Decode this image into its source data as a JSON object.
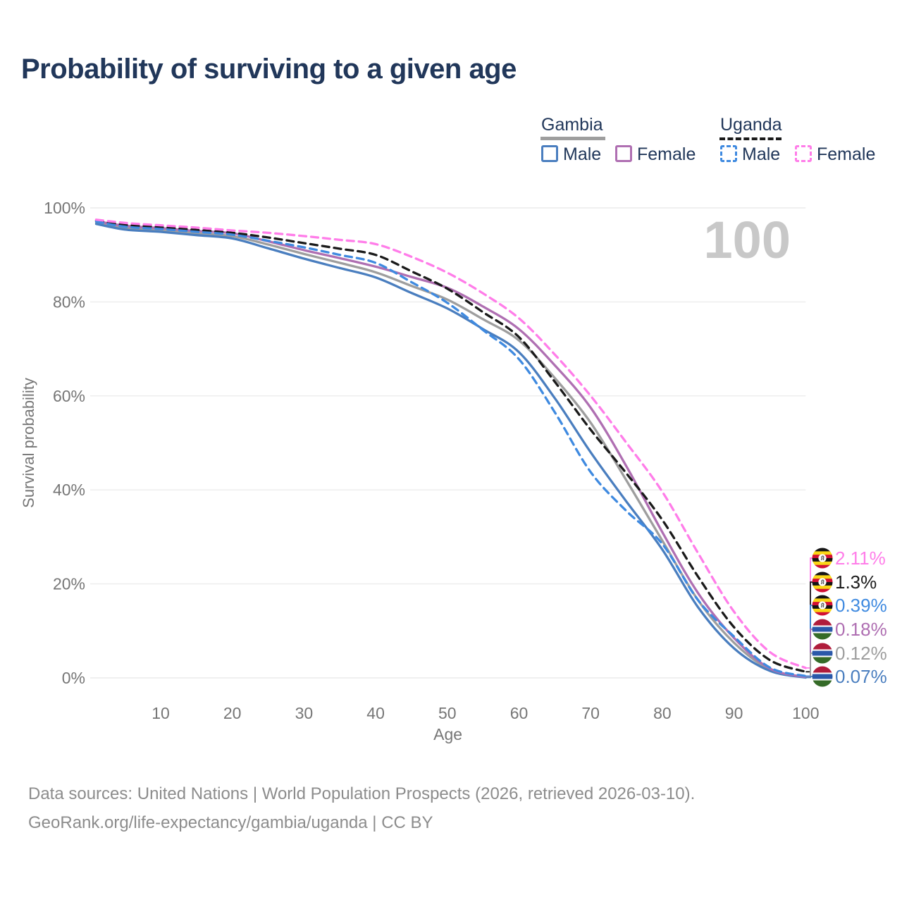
{
  "header": {
    "title": "Probability of surviving to a given age"
  },
  "legend": {
    "groups": [
      {
        "label": "Gambia",
        "line_style": "solid",
        "line_color": "#9e9e9e",
        "items": [
          {
            "label": "Male",
            "color": "#4a7ebf"
          },
          {
            "label": "Female",
            "color": "#af6fb2"
          }
        ]
      },
      {
        "label": "Uganda",
        "line_style": "dashed",
        "line_color": "#1a1a1a",
        "items": [
          {
            "label": "Male",
            "color": "#3f8ae0"
          },
          {
            "label": "Female",
            "color": "#ff7de9"
          }
        ]
      }
    ]
  },
  "chart_data": {
    "type": "line",
    "title": "Probability of surviving to a given age",
    "xlabel": "Age",
    "ylabel": "Survival probability",
    "xlim": [
      0,
      100
    ],
    "ylim": [
      0,
      100
    ],
    "grid": "horizontal-only",
    "watermark": "100",
    "x_ticks": [
      {
        "v": 10,
        "label": "10"
      },
      {
        "v": 20,
        "label": "20"
      },
      {
        "v": 30,
        "label": "30"
      },
      {
        "v": 40,
        "label": "40"
      },
      {
        "v": 50,
        "label": "50"
      },
      {
        "v": 60,
        "label": "60"
      },
      {
        "v": 70,
        "label": "70"
      },
      {
        "v": 80,
        "label": "80"
      },
      {
        "v": 90,
        "label": "90"
      },
      {
        "v": 100,
        "label": "100"
      }
    ],
    "y_ticks": [
      {
        "v": 0,
        "label": "0%"
      },
      {
        "v": 20,
        "label": "20%"
      },
      {
        "v": 40,
        "label": "40%"
      },
      {
        "v": 60,
        "label": "60%"
      },
      {
        "v": 80,
        "label": "80%"
      },
      {
        "v": 100,
        "label": "100%"
      }
    ],
    "ages": [
      1,
      5,
      10,
      15,
      20,
      25,
      30,
      35,
      40,
      45,
      50,
      55,
      60,
      65,
      70,
      75,
      80,
      85,
      90,
      95,
      100
    ],
    "series": [
      {
        "name": "Gambia Both sexes",
        "country": "Gambia",
        "sex": "Both",
        "color": "#9e9e9e",
        "dashed": false,
        "values": [
          96.9,
          95.8,
          95.3,
          94.6,
          94.0,
          92.2,
          90.2,
          88.3,
          86.3,
          83.4,
          80.5,
          76.3,
          71.8,
          63.8,
          54.3,
          42.0,
          29.2,
          16.5,
          7.5,
          1.8,
          0.12
        ]
      },
      {
        "name": "Gambia Male",
        "country": "Gambia",
        "sex": "Male",
        "color": "#4a7ebf",
        "dashed": false,
        "values": [
          96.6,
          95.4,
          94.9,
          94.2,
          93.5,
          91.4,
          89.2,
          87.2,
          85.2,
          81.9,
          78.6,
          74.2,
          69.3,
          59.5,
          48.0,
          37.5,
          27.3,
          15.0,
          6.3,
          1.5,
          0.07
        ]
      },
      {
        "name": "Gambia Female",
        "country": "Gambia",
        "sex": "Female",
        "color": "#af6fb2",
        "dashed": false,
        "values": [
          97.2,
          96.2,
          95.7,
          95.1,
          94.6,
          92.9,
          91.0,
          89.3,
          87.5,
          85.3,
          83.0,
          79.0,
          74.2,
          66.5,
          57.5,
          45.0,
          31.0,
          18.0,
          8.5,
          2.0,
          0.18
        ]
      },
      {
        "name": "Uganda Both sexes",
        "country": "Uganda",
        "sex": "Both",
        "color": "#1a1a1a",
        "dashed": true,
        "values": [
          97.3,
          96.4,
          95.9,
          95.3,
          94.7,
          93.7,
          92.5,
          91.3,
          90.0,
          86.5,
          82.8,
          77.8,
          72.5,
          63.0,
          52.8,
          43.5,
          33.6,
          21.5,
          10.8,
          3.8,
          1.3
        ]
      },
      {
        "name": "Uganda Male",
        "country": "Uganda",
        "sex": "Male",
        "color": "#3f8ae0",
        "dashed": true,
        "values": [
          97.1,
          96.0,
          95.5,
          94.9,
          94.3,
          93.0,
          91.6,
          90.0,
          88.3,
          84.2,
          79.8,
          74.0,
          67.8,
          56.5,
          43.8,
          35.5,
          28.5,
          16.5,
          8.8,
          2.2,
          0.39
        ]
      },
      {
        "name": "Uganda Female",
        "country": "Uganda",
        "sex": "Female",
        "color": "#ff7de9",
        "dashed": true,
        "values": [
          97.5,
          96.8,
          96.3,
          95.8,
          95.2,
          94.7,
          94.0,
          93.2,
          92.3,
          89.6,
          86.2,
          81.8,
          76.5,
          68.8,
          60.0,
          50.0,
          39.6,
          26.5,
          14.1,
          5.5,
          2.11
        ]
      }
    ],
    "end_labels": [
      {
        "series": "Uganda Female",
        "value_label": "2.11%",
        "color": "#ff7de9",
        "flag": "uganda"
      },
      {
        "series": "Uganda Both sexes",
        "value_label": "1.3%",
        "color": "#1a1a1a",
        "flag": "uganda"
      },
      {
        "series": "Uganda Male",
        "value_label": "0.39%",
        "color": "#3f8ae0",
        "flag": "uganda"
      },
      {
        "series": "Gambia Female",
        "value_label": "0.18%",
        "color": "#af6fb2",
        "flag": "gambia"
      },
      {
        "series": "Gambia Both sexes",
        "value_label": "0.12%",
        "color": "#9e9e9e",
        "flag": "gambia"
      },
      {
        "series": "Gambia Male",
        "value_label": "0.07%",
        "color": "#4a7ebf",
        "flag": "gambia"
      }
    ],
    "flags": {
      "uganda": {
        "stripes": [
          {
            "color": "#141414",
            "from": 0,
            "to": 16.7
          },
          {
            "color": "#f9d616",
            "from": 16.7,
            "to": 33.3
          },
          {
            "color": "#d21034",
            "from": 33.3,
            "to": 50
          },
          {
            "color": "#141414",
            "from": 50,
            "to": 66.7
          },
          {
            "color": "#f9d616",
            "from": 66.7,
            "to": 83.3
          },
          {
            "color": "#d21034",
            "from": 83.3,
            "to": 100
          }
        ],
        "center_disc": "#ffffff",
        "crane_color": "#5a5a5a"
      },
      "gambia": {
        "stripes": [
          {
            "color": "#b01c3c",
            "from": 0,
            "to": 31
          },
          {
            "color": "#ffffff",
            "from": 31,
            "to": 38
          },
          {
            "color": "#2a58a9",
            "from": 38,
            "to": 62
          },
          {
            "color": "#ffffff",
            "from": 62,
            "to": 69
          },
          {
            "color": "#356b28",
            "from": 69,
            "to": 100
          }
        ]
      }
    },
    "colors": {
      "grid": "#ececec",
      "tick_text": "#767676",
      "watermark": "#c8c8c8"
    }
  },
  "footer": {
    "line1": "Data sources: United Nations | World Population Prospects (2026, retrieved 2026-03-10).",
    "line2": "GeoRank.org/life-expectancy/gambia/uganda | CC BY"
  }
}
